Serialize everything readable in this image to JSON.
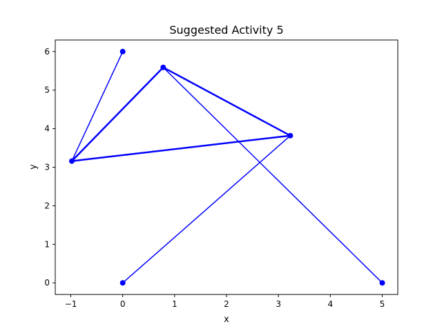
{
  "chart_data": {
    "type": "line",
    "title": "Suggested Activity 5",
    "xlabel": "x",
    "ylabel": "y",
    "xlim": [
      -1.3,
      5.3
    ],
    "ylim": [
      -0.3,
      6.3
    ],
    "xticks": [
      -1,
      0,
      1,
      2,
      3,
      4,
      5
    ],
    "yticks": [
      0,
      1,
      2,
      3,
      4,
      5,
      6
    ],
    "grid": false,
    "color": "#0000ff",
    "segments": [
      {
        "points": [
          [
            0,
            6
          ],
          [
            -0.98,
            3.16
          ]
        ],
        "width": 1.5
      },
      {
        "points": [
          [
            0.78,
            5.59
          ],
          [
            5,
            0
          ]
        ],
        "width": 1.5
      },
      {
        "points": [
          [
            0,
            0
          ],
          [
            3.23,
            3.82
          ]
        ],
        "width": 1.5
      },
      {
        "points": [
          [
            -0.98,
            3.16
          ],
          [
            0.78,
            5.59
          ]
        ],
        "width": 2.5
      },
      {
        "points": [
          [
            0.78,
            5.59
          ],
          [
            3.23,
            3.82
          ]
        ],
        "width": 2.5
      },
      {
        "points": [
          [
            3.23,
            3.82
          ],
          [
            -0.98,
            3.16
          ]
        ],
        "width": 2.5
      }
    ],
    "markers": [
      [
        0,
        6
      ],
      [
        -0.98,
        3.16
      ],
      [
        0.78,
        5.59
      ],
      [
        3.23,
        3.82
      ],
      [
        0,
        0
      ],
      [
        5,
        0
      ]
    ]
  }
}
